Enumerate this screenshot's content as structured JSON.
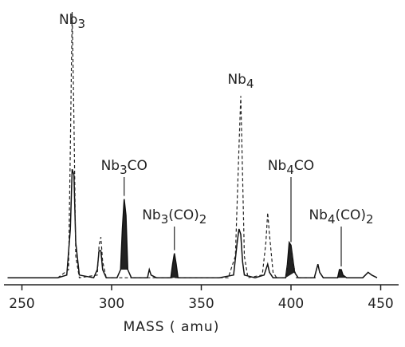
{
  "chart_data": {
    "type": "line",
    "xlabel": "MASS ( amu)",
    "xlim": [
      240,
      460
    ],
    "ylim": [
      0,
      100
    ],
    "xticks": [
      250,
      300,
      350,
      400,
      450
    ],
    "series": [
      {
        "color": "#111111",
        "style": "solid",
        "x": [
          242,
          270,
          275,
          277,
          278,
          279,
          280,
          282,
          290,
          292,
          293,
          294,
          295,
          297,
          303,
          305,
          306,
          307,
          308,
          309,
          311,
          320,
          321,
          322,
          325,
          333,
          334,
          335,
          336,
          337,
          345,
          360,
          368,
          370,
          371,
          372,
          373,
          374,
          380,
          385,
          387,
          388,
          390,
          397,
          398,
          399,
          400,
          401,
          402,
          404,
          413,
          415,
          416,
          418,
          426,
          427,
          428,
          429,
          431,
          440,
          443,
          445,
          448
        ],
        "values": [
          2,
          2,
          3,
          20,
          42,
          40,
          15,
          3,
          2,
          5,
          12,
          12,
          5,
          2,
          2,
          5,
          20,
          31,
          25,
          5,
          2,
          2,
          5,
          3,
          2,
          2,
          7,
          11,
          7,
          2,
          2,
          2,
          3,
          15,
          20,
          18,
          8,
          3,
          2,
          3,
          7,
          4,
          2,
          2,
          7,
          15,
          14,
          9,
          4,
          2,
          2,
          7,
          4,
          2,
          2,
          5,
          5,
          3,
          2,
          2,
          4,
          3,
          2
        ]
      },
      {
        "color": "#222222",
        "style": "dashed",
        "x": [
          270,
          276,
          277,
          278,
          279,
          280,
          282,
          292,
          293,
          294,
          295,
          297,
          365,
          369,
          371,
          372,
          373,
          374,
          376,
          384,
          386,
          387,
          388,
          390,
          392,
          397,
          399,
          400,
          401,
          403,
          415
        ],
        "values": [
          2,
          5,
          50,
          100,
          60,
          10,
          2,
          3,
          14,
          17,
          8,
          2,
          2,
          10,
          50,
          69,
          40,
          10,
          2,
          3,
          15,
          26,
          18,
          4,
          2,
          2,
          10,
          13,
          8,
          2,
          2
        ]
      }
    ],
    "annotations": [
      {
        "text": "Nb3",
        "x": 278,
        "filled": false
      },
      {
        "text": "Nb3CO",
        "x": 307,
        "filled": true
      },
      {
        "text": "Nb3(CO)2",
        "x": 335,
        "filled": true
      },
      {
        "text": "Nb4",
        "x": 372,
        "filled": false
      },
      {
        "text": "Nb4CO",
        "x": 400,
        "filled": true
      },
      {
        "text": "Nb4(CO)2",
        "x": 428,
        "filled": true
      }
    ]
  }
}
